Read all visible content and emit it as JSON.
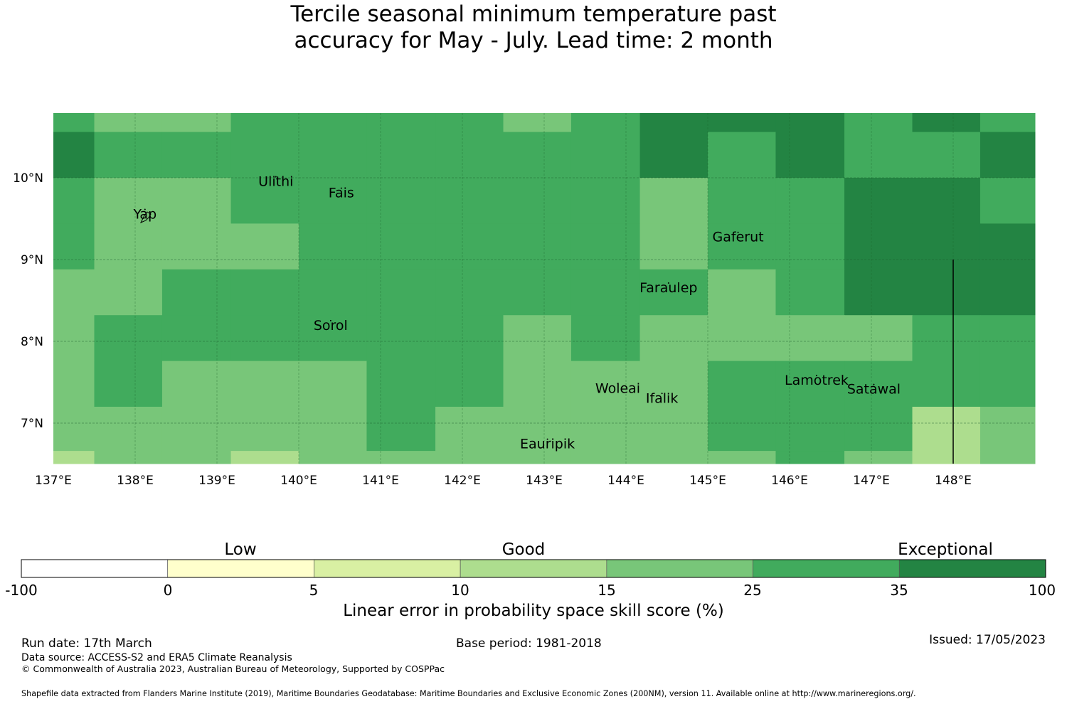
{
  "title": {
    "line1": "Tercile seasonal minimum temperature past",
    "line2": "accuracy for May - July. Lead time: 2 month"
  },
  "map": {
    "lon_range": [
      137,
      149
    ],
    "lat_range": [
      6.5,
      10.8
    ],
    "lon_ticks": [
      "137°E",
      "138°E",
      "139°E",
      "140°E",
      "141°E",
      "142°E",
      "143°E",
      "144°E",
      "145°E",
      "146°E",
      "147°E",
      "148°E"
    ],
    "lat_ticks": [
      "10°N",
      "9°N",
      "8°N",
      "7°N"
    ],
    "row_lat_edges": [
      10.8,
      10.56,
      10.0,
      9.44,
      8.88,
      8.32,
      7.76,
      7.2,
      6.66,
      6.5
    ],
    "col_lon_edges": [
      137.0,
      137.5,
      138.33,
      139.17,
      140.0,
      140.83,
      141.67,
      142.5,
      143.33,
      144.17,
      145.0,
      145.83,
      146.67,
      147.5,
      148.33,
      149.0
    ],
    "grid_levels": [
      [
        5,
        4,
        4,
        5,
        5,
        5,
        5,
        4,
        5,
        6,
        6,
        6,
        5,
        6,
        5
      ],
      [
        6,
        5,
        5,
        5,
        5,
        5,
        5,
        5,
        5,
        6,
        5,
        6,
        5,
        5,
        6
      ],
      [
        5,
        4,
        4,
        5,
        5,
        5,
        5,
        5,
        5,
        4,
        5,
        5,
        6,
        6,
        5
      ],
      [
        5,
        4,
        4,
        4,
        5,
        5,
        5,
        5,
        5,
        4,
        5,
        5,
        6,
        6,
        6
      ],
      [
        4,
        4,
        5,
        5,
        5,
        5,
        5,
        5,
        5,
        5,
        4,
        5,
        6,
        6,
        6
      ],
      [
        4,
        5,
        5,
        5,
        5,
        5,
        5,
        4,
        5,
        4,
        4,
        4,
        4,
        5,
        5
      ],
      [
        4,
        5,
        4,
        4,
        4,
        5,
        5,
        4,
        4,
        4,
        5,
        5,
        5,
        5,
        5
      ],
      [
        4,
        4,
        4,
        4,
        4,
        5,
        4,
        4,
        4,
        4,
        5,
        5,
        5,
        3,
        4
      ],
      [
        3,
        4,
        4,
        3,
        4,
        4,
        4,
        4,
        4,
        4,
        4,
        5,
        4,
        3,
        4
      ]
    ],
    "islands": [
      {
        "name": "Yap",
        "lon": 138.12,
        "lat": 9.5
      },
      {
        "name": "Ulithi",
        "lon": 139.72,
        "lat": 9.9
      },
      {
        "name": "Fais",
        "lon": 140.52,
        "lat": 9.76
      },
      {
        "name": "Gaferut",
        "lon": 145.37,
        "lat": 9.22
      },
      {
        "name": "Faraulep",
        "lon": 144.52,
        "lat": 8.6
      },
      {
        "name": "Sorol",
        "lon": 140.39,
        "lat": 8.14
      },
      {
        "name": "Woleai",
        "lon": 143.9,
        "lat": 7.37
      },
      {
        "name": "Ifalik",
        "lon": 144.44,
        "lat": 7.25
      },
      {
        "name": "Lamotrek",
        "lon": 146.33,
        "lat": 7.47
      },
      {
        "name": "Satawal",
        "lon": 147.03,
        "lat": 7.36
      },
      {
        "name": "Eauripik",
        "lon": 143.04,
        "lat": 6.69
      }
    ],
    "boundary_line": {
      "lon": 148.0,
      "lat_top": 9.0,
      "lat_bottom": 6.5
    }
  },
  "colorbar": {
    "colors": [
      "#ffffff",
      "#ffffcc",
      "#d9f0a3",
      "#addd8e",
      "#78c679",
      "#41ab5d",
      "#238443"
    ],
    "ticks": [
      "-100",
      "0",
      "5",
      "10",
      "15",
      "25",
      "35",
      "100"
    ],
    "categories": [
      "Low",
      "Good",
      "Exceptional"
    ],
    "label": "Linear error in probability space skill score (%)"
  },
  "footer": {
    "run_date": "Run date: 17th March",
    "base_period": "Base period: 1981-2018",
    "issued": "Issued: 17/05/2023",
    "data_source": "Data source: ACCESS-S2 and ERA5 Climate Reanalysis",
    "copyright": "© Commonwealth of Australia 2023, Australian Bureau of Meteorology, Supported by COSPPac",
    "shapefile": "Shapefile data extracted from Flanders Marine Institute (2019), Maritime Boundaries Geodatabase: Maritime Boundaries and Exclusive Economic Zones (200NM), version 11. Available online at http://www.marineregions.org/."
  }
}
